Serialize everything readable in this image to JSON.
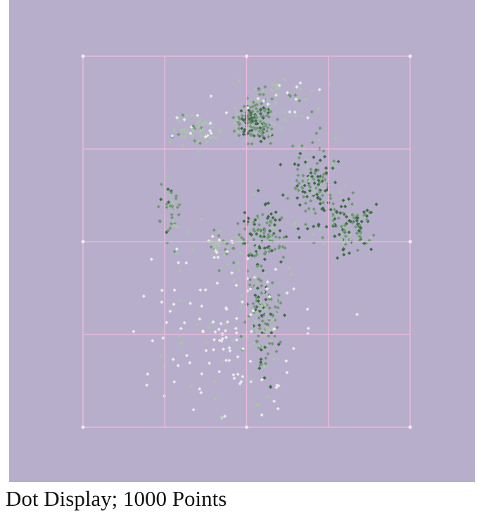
{
  "caption": "Dot Display; 1000 Points",
  "colors": {
    "background": "#b6aeca",
    "grid": "#e9b8dc",
    "grid_node": "#f6e8f2",
    "dot_dark": "#3f6c47",
    "dot_mid": "#6f9a72",
    "dot_light": "#a9c6a9",
    "dot_faint": "#e7ecea"
  },
  "chart_data": {
    "type": "scatter",
    "title": "",
    "xlabel": "",
    "ylabel": "",
    "xlim": [
      0,
      4
    ],
    "ylim": [
      0,
      4
    ],
    "grid": true,
    "grid_cells": [
      4,
      4
    ],
    "total_points": 1000,
    "clusters": [
      {
        "x": 2.1,
        "y": 3.3,
        "spread_x": 0.12,
        "spread_y": 0.12,
        "count": 150,
        "density": "high"
      },
      {
        "x": 2.85,
        "y": 2.65,
        "spread_x": 0.14,
        "spread_y": 0.22,
        "count": 140,
        "density": "high"
      },
      {
        "x": 3.25,
        "y": 2.15,
        "spread_x": 0.17,
        "spread_y": 0.14,
        "count": 110,
        "density": "high"
      },
      {
        "x": 2.2,
        "y": 2.1,
        "spread_x": 0.14,
        "spread_y": 0.15,
        "count": 110,
        "density": "high"
      },
      {
        "x": 2.2,
        "y": 1.2,
        "spread_x": 0.1,
        "spread_y": 0.32,
        "count": 130,
        "density": "medium"
      },
      {
        "x": 1.05,
        "y": 2.35,
        "spread_x": 0.1,
        "spread_y": 0.18,
        "count": 40,
        "density": "medium"
      },
      {
        "x": 1.4,
        "y": 3.2,
        "spread_x": 0.15,
        "spread_y": 0.1,
        "count": 60,
        "density": "low"
      },
      {
        "x": 1.7,
        "y": 1.95,
        "spread_x": 0.2,
        "spread_y": 0.1,
        "count": 50,
        "density": "low"
      },
      {
        "x": 2.4,
        "y": 3.55,
        "spread_x": 0.3,
        "spread_y": 0.12,
        "count": 60,
        "density": "low"
      },
      {
        "x": 1.75,
        "y": 1.0,
        "spread_x": 0.5,
        "spread_y": 0.5,
        "count": 150,
        "density": "sparse"
      }
    ]
  }
}
